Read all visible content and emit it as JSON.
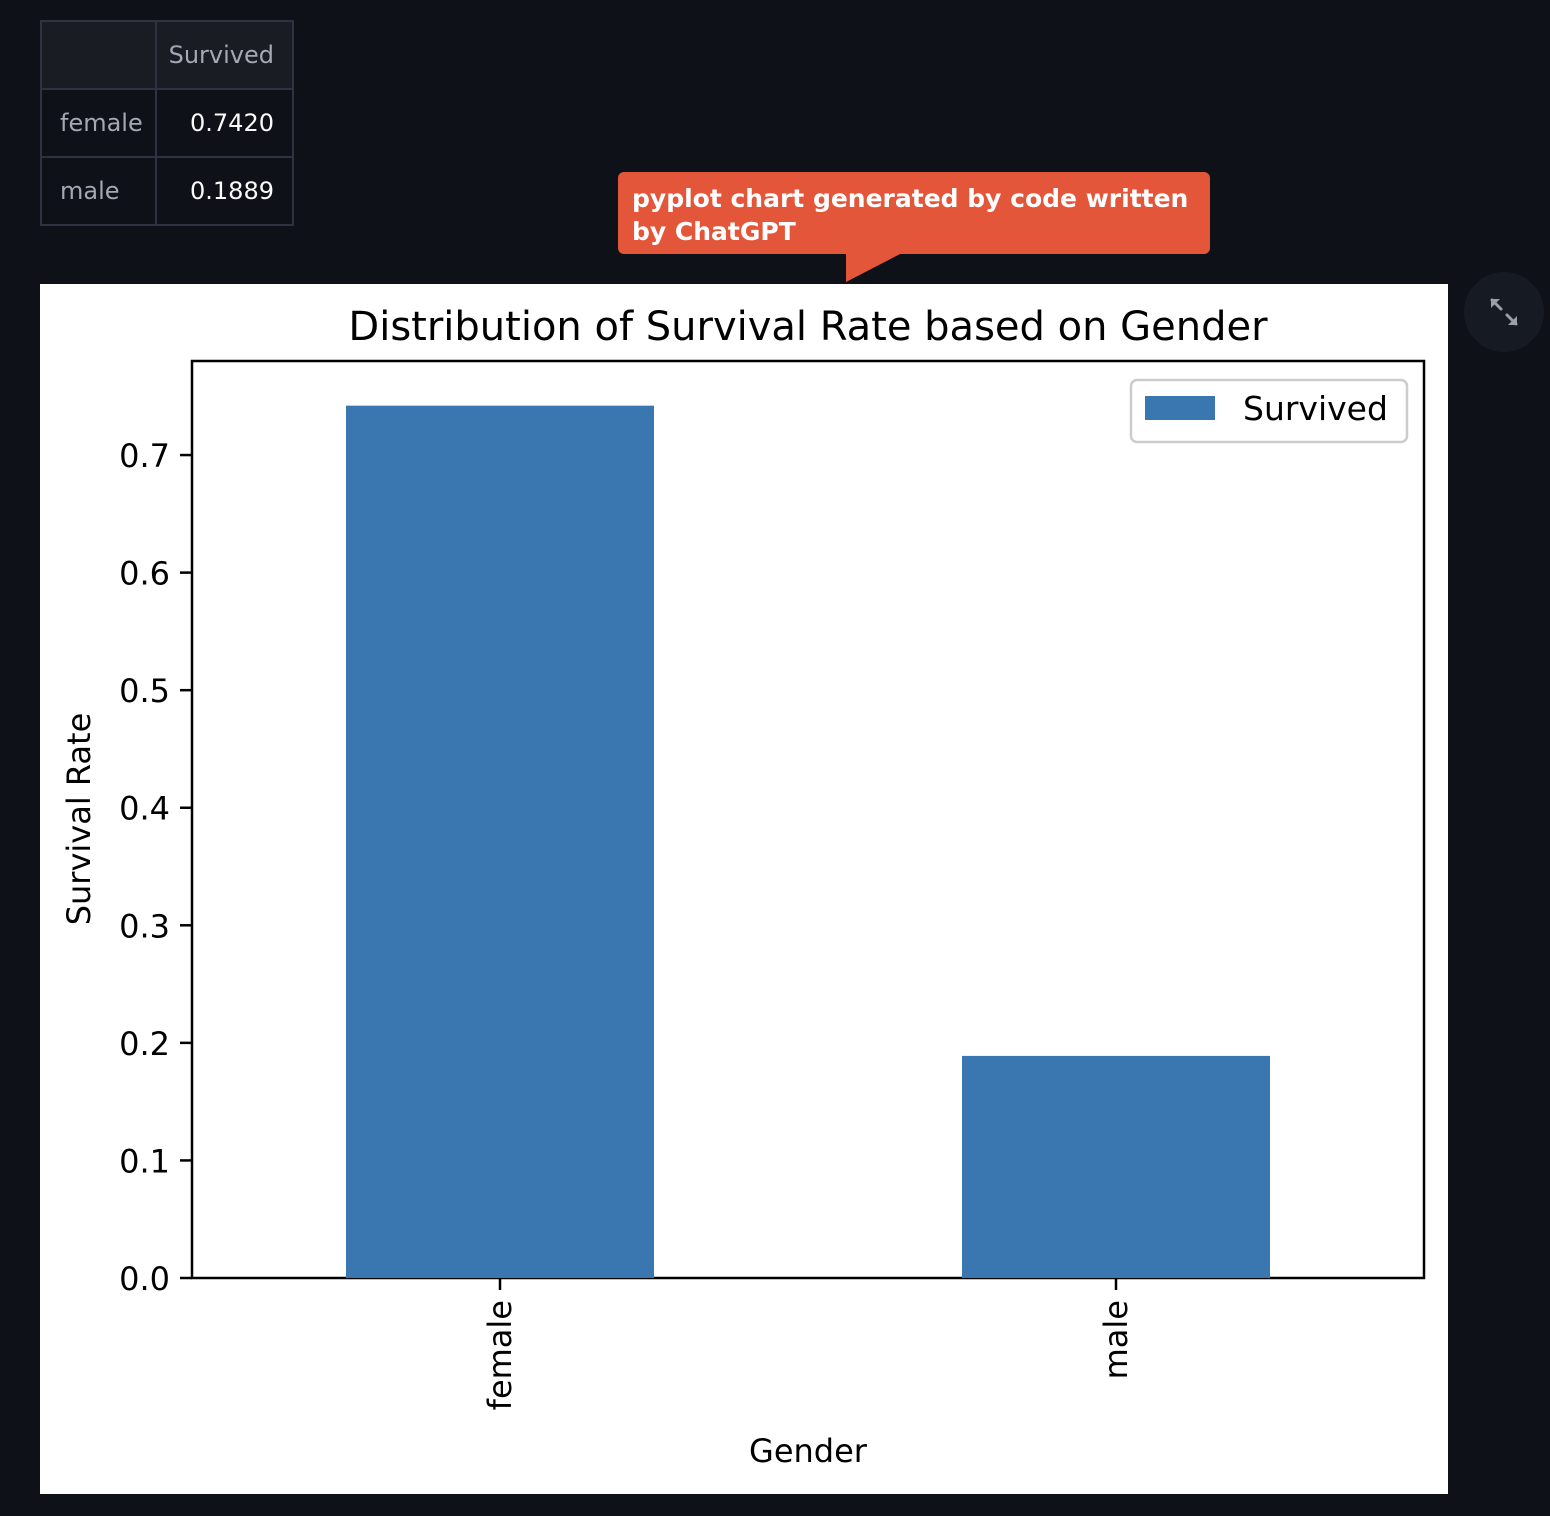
{
  "table": {
    "header": [
      "",
      "Survived"
    ],
    "rows": [
      {
        "label": "female",
        "value": "0.7420"
      },
      {
        "label": "male",
        "value": "0.1889"
      }
    ]
  },
  "callout": {
    "text": "pyplot chart generated by code written by ChatGPT"
  },
  "fullscreen": {
    "icon": "expand-icon"
  },
  "chart_data": {
    "type": "bar",
    "title": "Distribution of Survival Rate based on Gender",
    "xlabel": "Gender",
    "ylabel": "Survival Rate",
    "categories": [
      "female",
      "male"
    ],
    "series": [
      {
        "name": "Survived",
        "values": [
          0.742,
          0.1889
        ],
        "color": "#3a76af"
      }
    ],
    "ylim": [
      0,
      0.78
    ],
    "yticks": [
      0.0,
      0.1,
      0.2,
      0.3,
      0.4,
      0.5,
      0.6,
      0.7
    ],
    "ytick_labels": [
      "0.0",
      "0.1",
      "0.2",
      "0.3",
      "0.4",
      "0.5",
      "0.6",
      "0.7"
    ],
    "xtick_rotation": "vertical",
    "legend_position": "upper right",
    "grid": false
  }
}
